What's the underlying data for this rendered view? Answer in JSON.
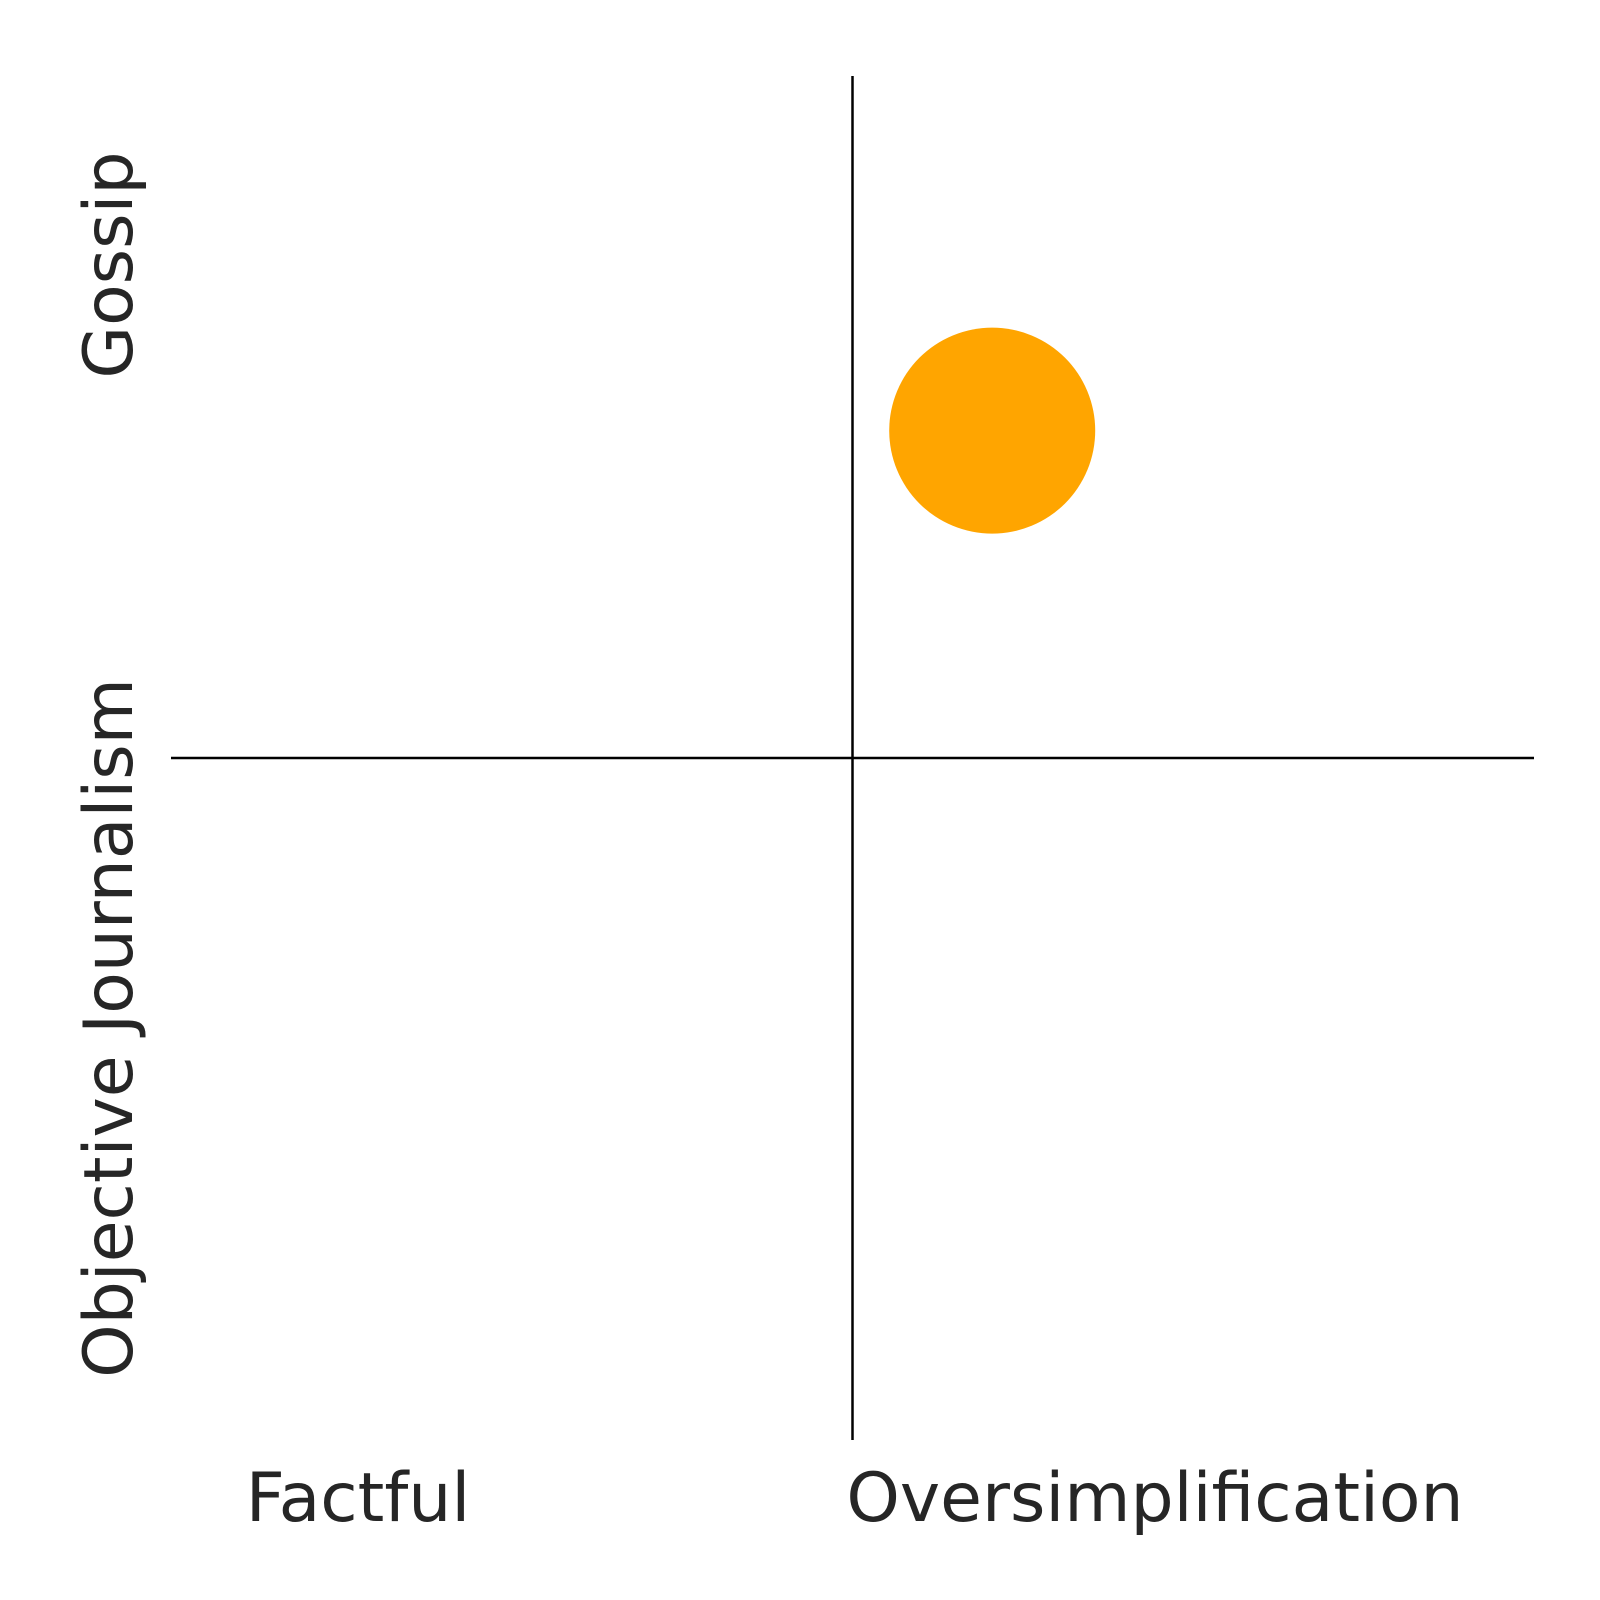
{
  "chart_data": {
    "type": "scatter",
    "title": "",
    "xlim": [
      -1,
      1
    ],
    "ylim": [
      -1,
      1
    ],
    "grid": false,
    "x_labels": {
      "low": "Factful",
      "high": "Oversimplification"
    },
    "y_labels": {
      "low": "Objective Journalism",
      "high": "Gossip"
    },
    "points": [
      {
        "x": 0.205,
        "y": 0.48,
        "color": "#FFA500"
      }
    ]
  }
}
